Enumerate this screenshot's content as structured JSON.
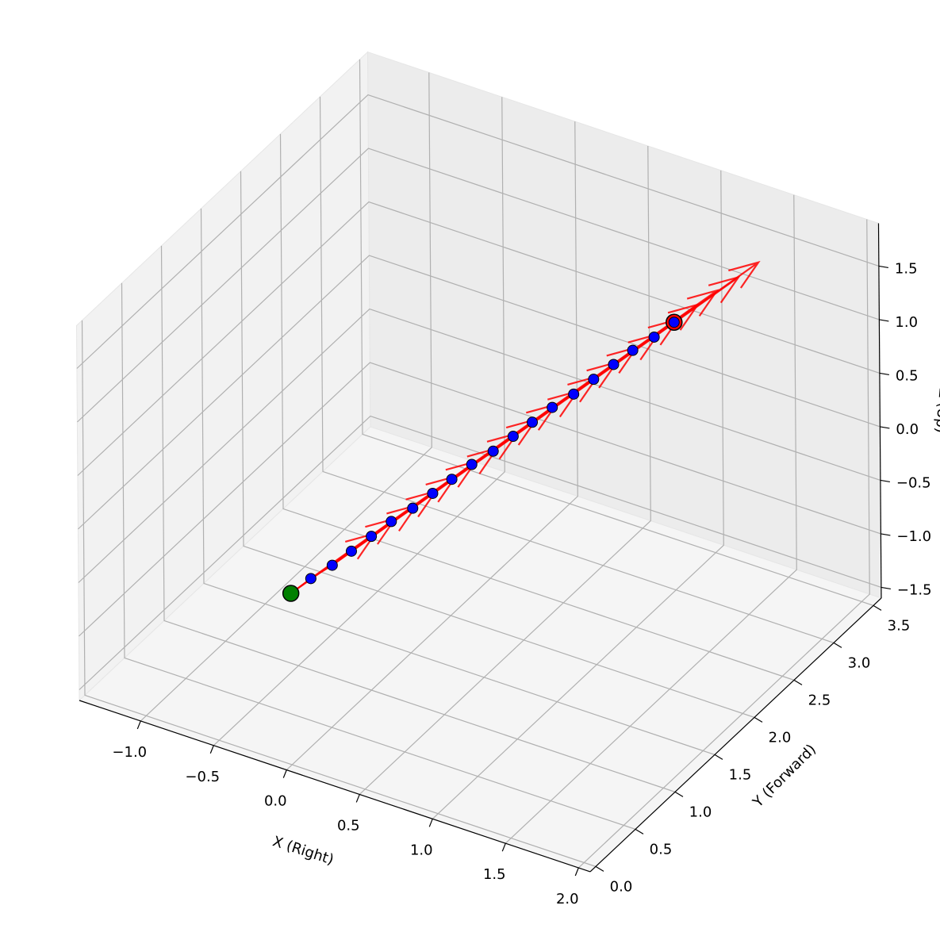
{
  "chart_data": {
    "type": "scatter3d",
    "xlabel": "X (Right)",
    "ylabel": "Y (Forward)",
    "zlabel": "Z (Up)",
    "xlim": [
      -1.42,
      2.08
    ],
    "ylim": [
      -0.07,
      3.6
    ],
    "zlim": [
      -1.6,
      1.9
    ],
    "xticks": [
      {
        "value": -1.0,
        "label": "−1.0"
      },
      {
        "value": -0.5,
        "label": "−0.5"
      },
      {
        "value": 0.0,
        "label": "0.0"
      },
      {
        "value": 0.5,
        "label": "0.5"
      },
      {
        "value": 1.0,
        "label": "1.0"
      },
      {
        "value": 1.5,
        "label": "1.5"
      },
      {
        "value": 2.0,
        "label": "2.0"
      }
    ],
    "yticks": [
      {
        "value": 0.0,
        "label": "0.0"
      },
      {
        "value": 0.5,
        "label": "0.5"
      },
      {
        "value": 1.0,
        "label": "1.0"
      },
      {
        "value": 1.5,
        "label": "1.5"
      },
      {
        "value": 2.0,
        "label": "2.0"
      },
      {
        "value": 2.5,
        "label": "2.5"
      },
      {
        "value": 3.0,
        "label": "3.0"
      },
      {
        "value": 3.5,
        "label": "3.5"
      }
    ],
    "zticks": [
      {
        "value": -1.5,
        "label": "−1.5"
      },
      {
        "value": -1.0,
        "label": "−1.0"
      },
      {
        "value": -0.5,
        "label": "−0.5"
      },
      {
        "value": 0.0,
        "label": "0.0"
      },
      {
        "value": 0.5,
        "label": "0.5"
      },
      {
        "value": 1.0,
        "label": "1.0"
      },
      {
        "value": 1.5,
        "label": "1.5"
      }
    ],
    "grid": true,
    "path": {
      "color": "red",
      "x": [
        0,
        0.05,
        0.11,
        0.16,
        0.21,
        0.26,
        0.32,
        0.37,
        0.42,
        0.47,
        0.53,
        0.58,
        0.63,
        0.68,
        0.74,
        0.79,
        0.84,
        0.89,
        0.95,
        1.0
      ],
      "y": [
        0,
        0.16,
        0.32,
        0.47,
        0.63,
        0.79,
        0.95,
        1.11,
        1.26,
        1.42,
        1.58,
        1.74,
        1.89,
        2.05,
        2.21,
        2.37,
        2.53,
        2.68,
        2.84,
        3.0
      ],
      "z": [
        0,
        0.05,
        0.09,
        0.14,
        0.19,
        0.24,
        0.28,
        0.33,
        0.38,
        0.43,
        0.47,
        0.52,
        0.57,
        0.62,
        0.66,
        0.71,
        0.76,
        0.81,
        0.85,
        0.9
      ]
    },
    "point_color": "blue",
    "start_color": "green",
    "end_color": "red",
    "arrows": {
      "color": "red",
      "u": [
        0.22,
        0.22,
        0.22,
        0.22,
        0.22,
        0.22,
        0.22,
        0.22,
        0.22,
        0.22,
        0.22,
        0.22,
        0.22,
        0.22,
        0.22,
        0.22,
        0.22,
        0.22,
        0.22,
        0.22
      ],
      "v": [
        0.66,
        0.66,
        0.66,
        0.66,
        0.66,
        0.66,
        0.66,
        0.66,
        0.66,
        0.66,
        0.66,
        0.66,
        0.66,
        0.66,
        0.66,
        0.66,
        0.66,
        0.66,
        0.66,
        0.66
      ],
      "w": [
        0.2,
        0.2,
        0.2,
        0.2,
        0.2,
        0.2,
        0.2,
        0.2,
        0.2,
        0.2,
        0.2,
        0.2,
        0.2,
        0.2,
        0.2,
        0.2,
        0.2,
        0.2,
        0.2,
        0.2
      ]
    }
  }
}
